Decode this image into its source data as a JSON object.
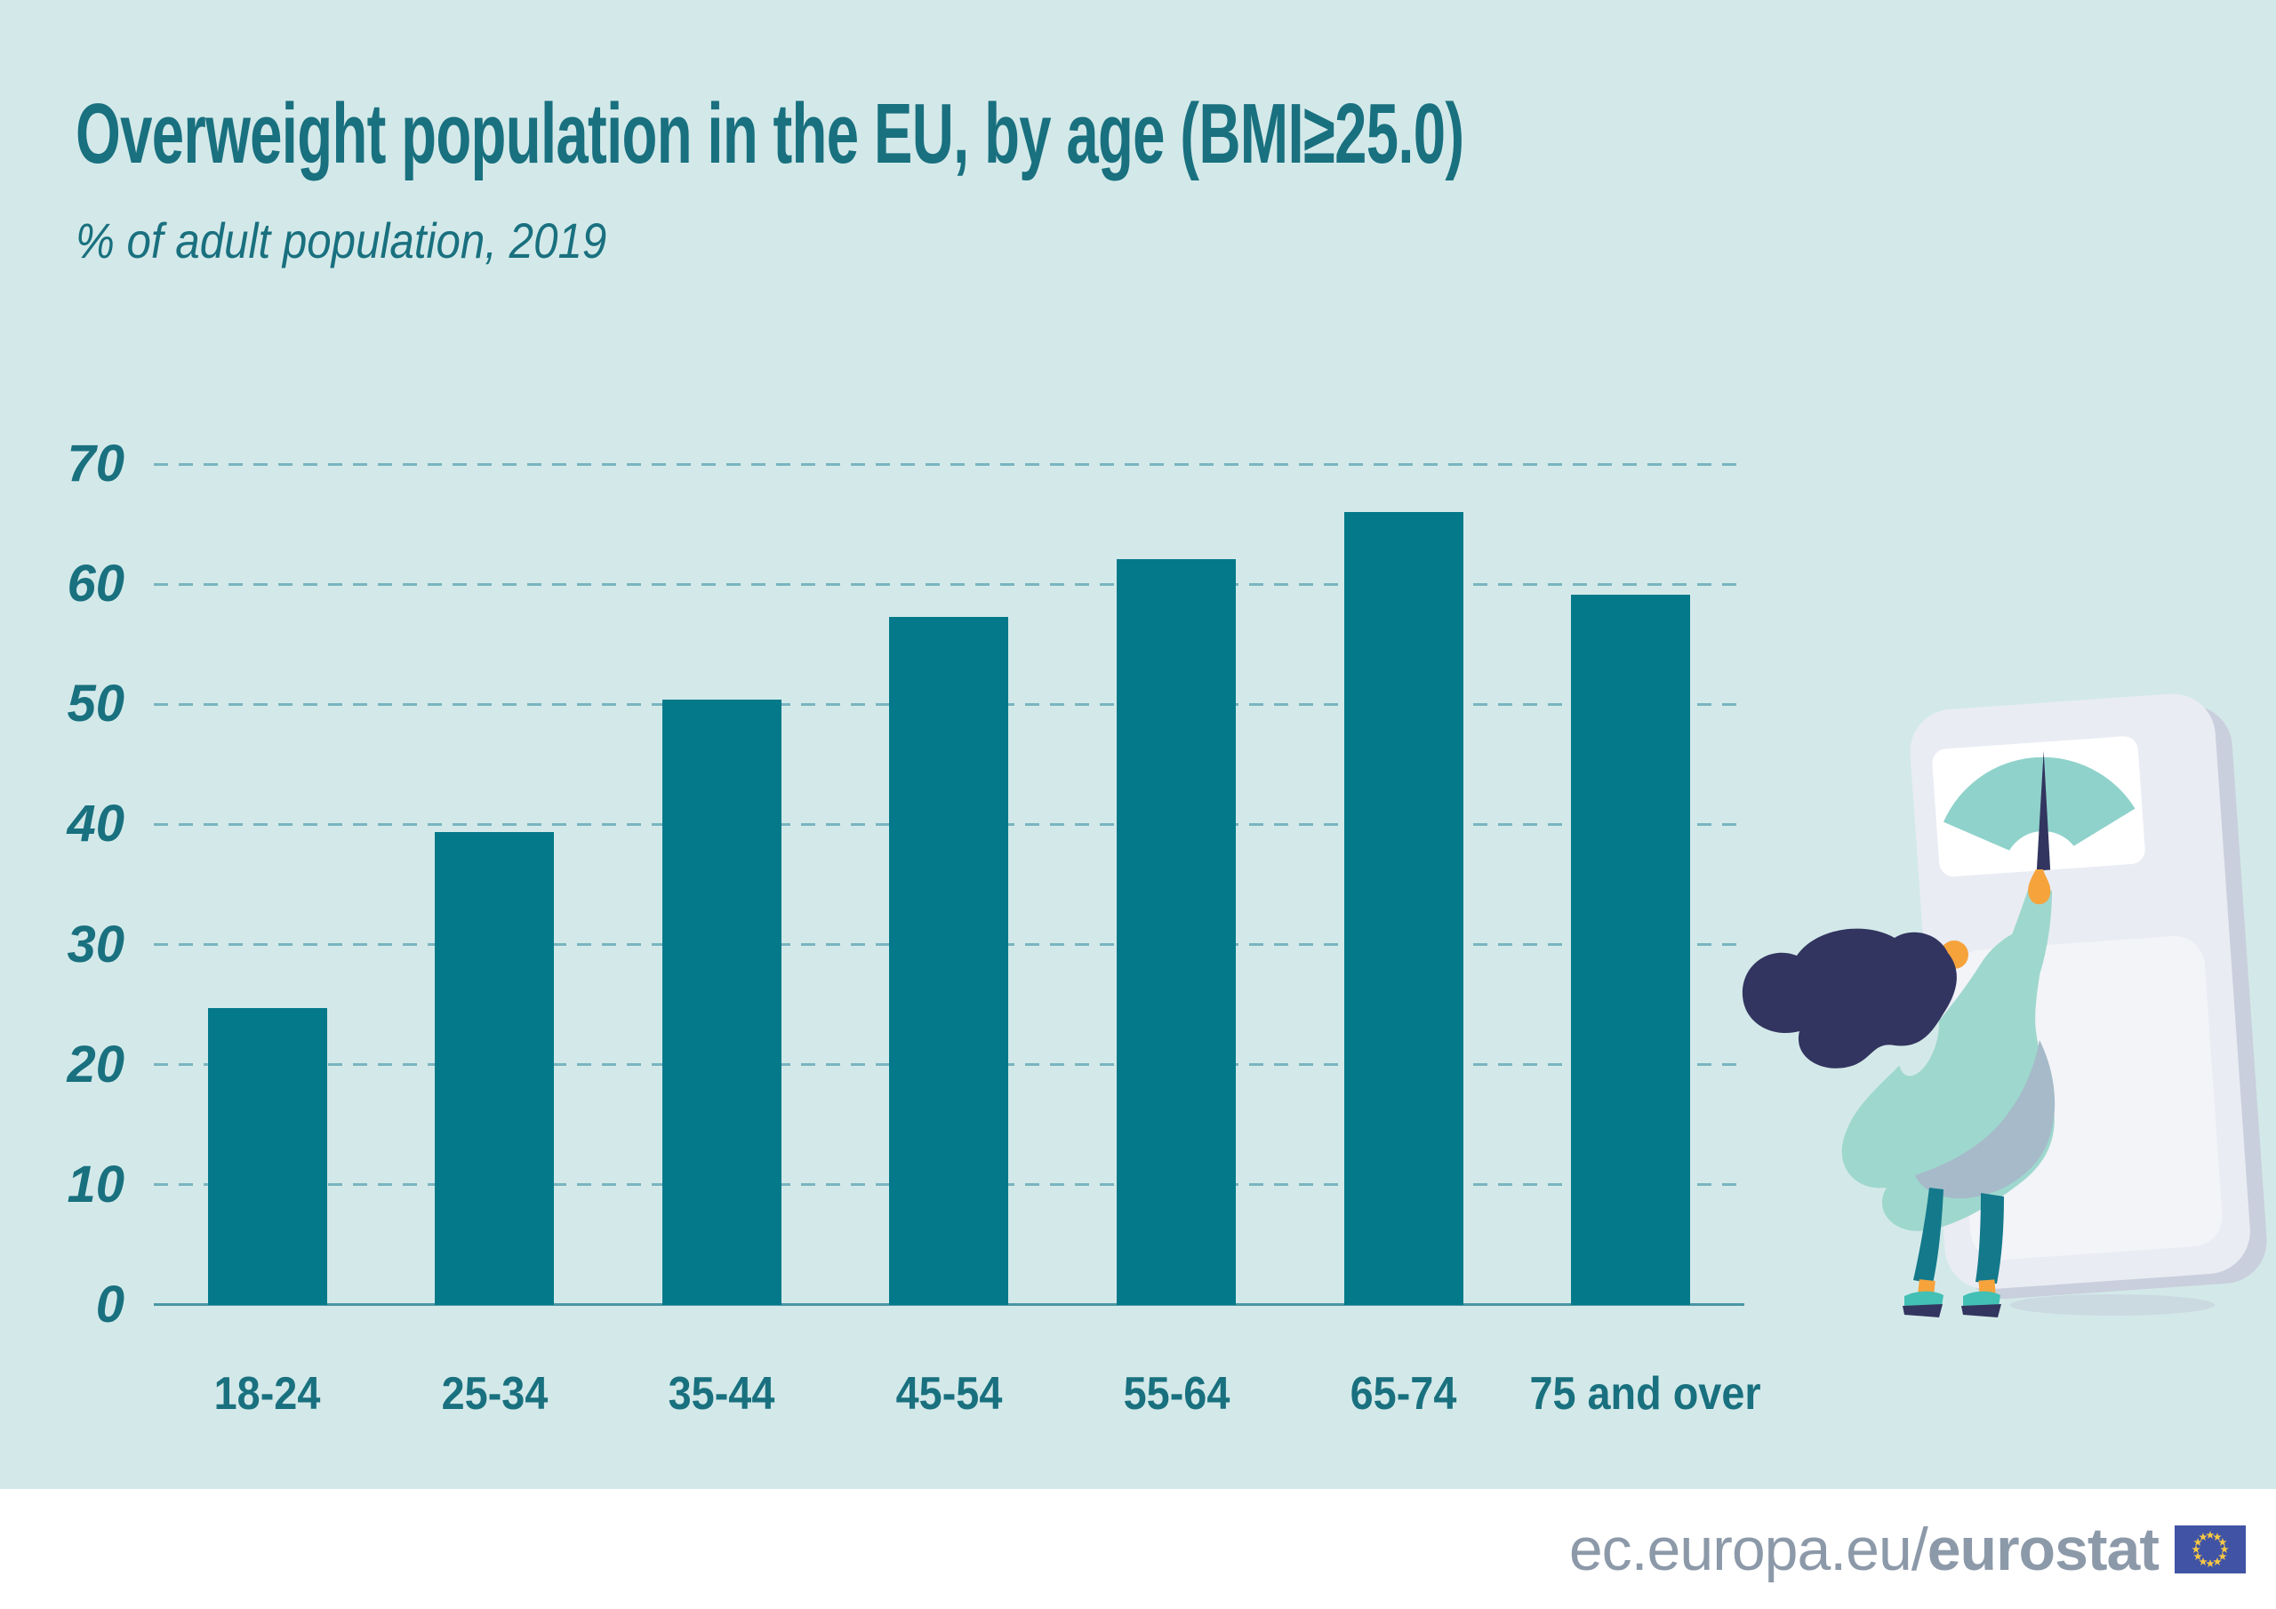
{
  "header": {
    "title": "Overweight population in the EU, by age (BMI≥25.0)",
    "subtitle": "% of adult population, 2019"
  },
  "chart_data": {
    "type": "bar",
    "title": "Overweight population in the EU, by age (BMI≥25.0)",
    "subtitle": "% of adult population, 2019",
    "categories": [
      "18-24",
      "25-34",
      "35-44",
      "45-54",
      "55-64",
      "65-74",
      "75 and over"
    ],
    "values": [
      24.7,
      39.4,
      50.4,
      57.3,
      62.1,
      66.0,
      59.1
    ],
    "unit": "% of adult population",
    "xlabel": "",
    "ylabel": "",
    "ylim": [
      0,
      70
    ],
    "yticks": [
      0,
      10,
      20,
      30,
      40,
      50,
      60,
      70
    ],
    "grid": "horizontal-dashed",
    "legend": null,
    "bar_color": "#04798a",
    "gridline_color": "#79b5bf",
    "axis_color": "#4896a3",
    "label_color": "#19707f",
    "background_color": "#d3e9e9"
  },
  "footer": {
    "url_regular": "ec.europa.eu/",
    "url_bold": "eurostat",
    "text_color": "#8c99a9",
    "background": "#ffffff",
    "flag": {
      "icon": "eu-flag-icon",
      "blue": "#4053a4",
      "star_yellow": "#f7c843"
    }
  },
  "illustration": {
    "name": "person-adjusting-bathroom-scale",
    "colors": {
      "scale_body": "#e9ecf3",
      "scale_shadow": "#c9cfdc",
      "dial_face": "#ffffff",
      "gauge_arc": "#8fd2cb",
      "needle": "#32355f",
      "hair": "#32355f",
      "dress": "#9ed7ce",
      "dress_shade": "#a6bac9",
      "skin": "#f6a33c",
      "pants": "#13798b",
      "shoes": "#43c0b5"
    }
  }
}
